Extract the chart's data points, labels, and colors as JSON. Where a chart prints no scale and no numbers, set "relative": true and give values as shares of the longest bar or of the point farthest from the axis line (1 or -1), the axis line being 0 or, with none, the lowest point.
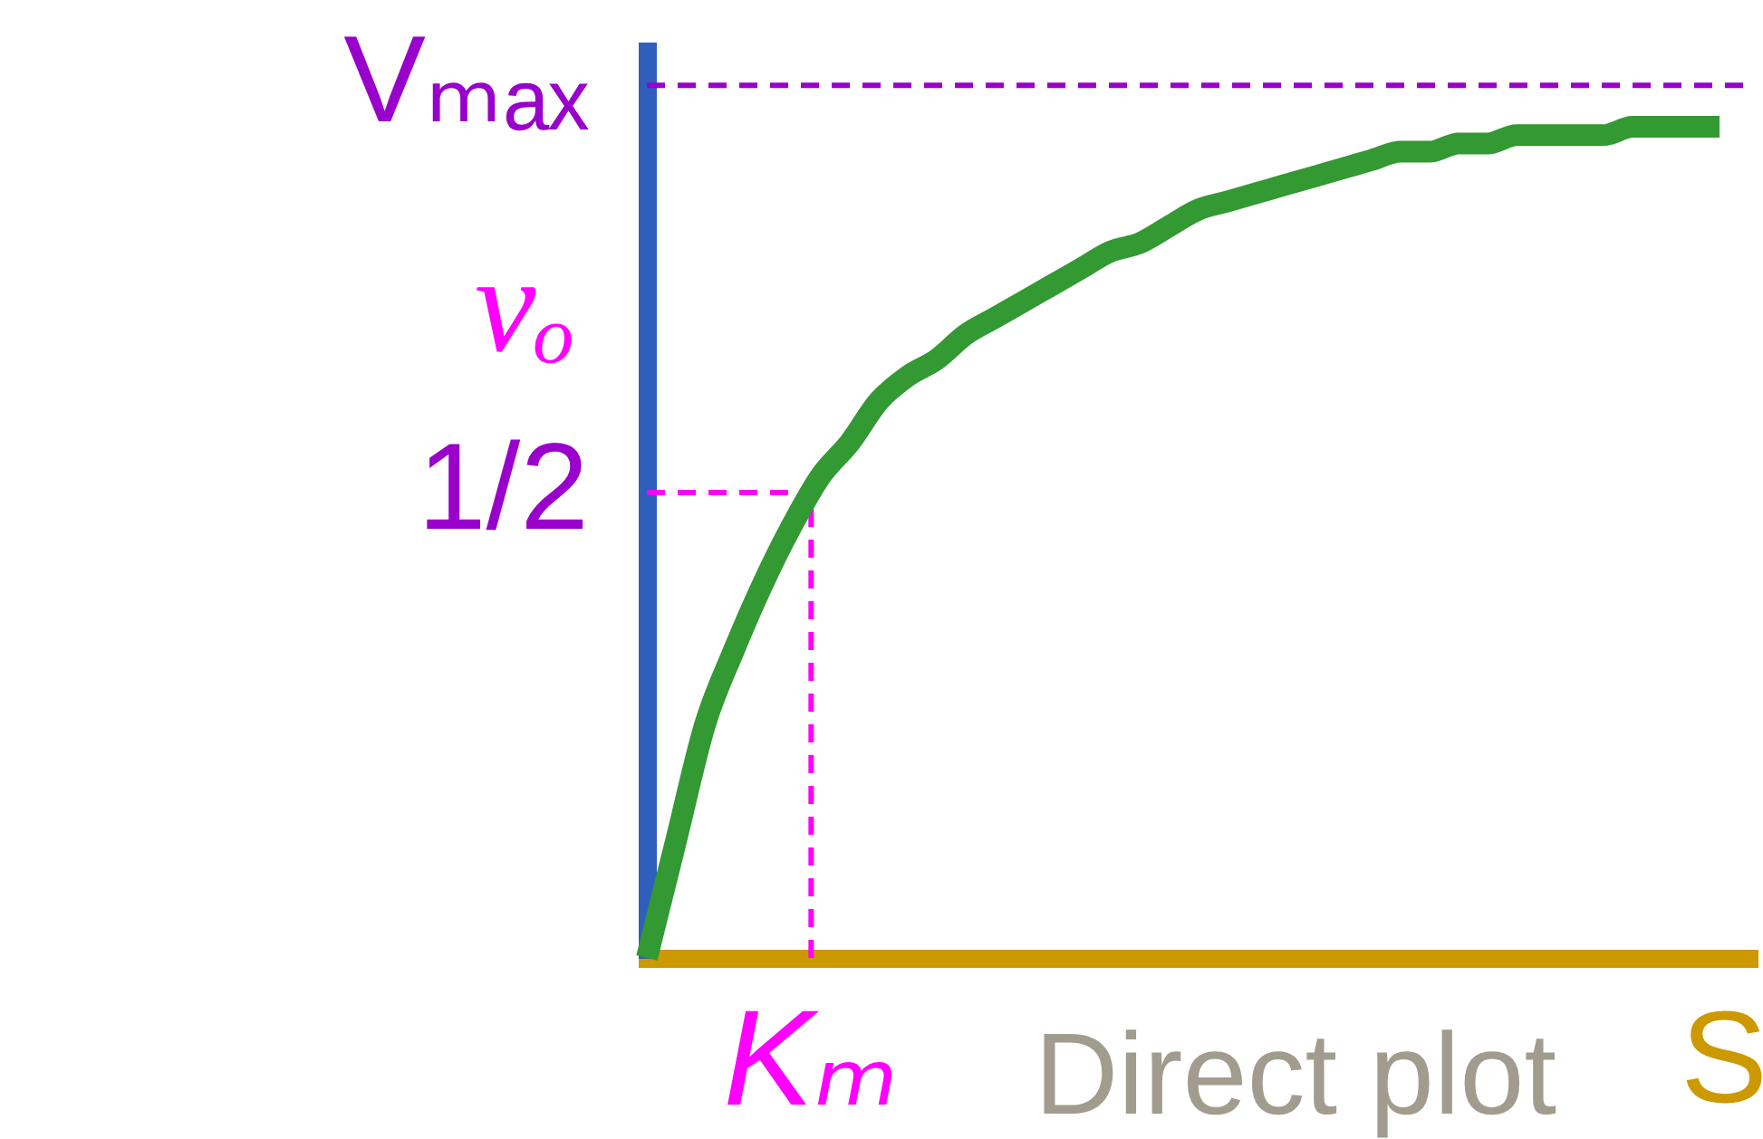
{
  "chart_data": {
    "type": "line",
    "relative": true,
    "xlabel": "S",
    "ylabel": "vₒ",
    "annotations": [
      "Direct plot"
    ],
    "categories": [
      null,
      null,
      null,
      null,
      null,
      null,
      null,
      null,
      null,
      null,
      null,
      null,
      null,
      null,
      null,
      null,
      null,
      null,
      null,
      null,
      null,
      null,
      null,
      null,
      null,
      null,
      null,
      null,
      null,
      null,
      null,
      null,
      null,
      null,
      null,
      null,
      null,
      null,
      null
    ],
    "ref_lines": [
      {
        "axis": "y",
        "value": 1.05,
        "label": "Vₘₐₓ",
        "color": "#9900cc",
        "line_style": "dashed"
      },
      {
        "axis": "y",
        "value": 0.56,
        "label": "1/2",
        "color": "#ff00ff",
        "line_style": "dashed"
      },
      {
        "axis": "x",
        "value": "Kₘ",
        "color": "#ff00ff",
        "line_style": "dashed"
      }
    ],
    "series": [
      {
        "color": "#339933",
        "values": [
          0,
          0.14,
          0.28,
          0.37,
          0.45,
          0.52,
          0.58,
          0.62,
          0.67,
          0.7,
          0.72,
          0.75,
          0.77,
          0.79,
          0.81,
          0.83,
          0.85,
          0.86,
          0.88,
          0.9,
          0.91,
          0.92,
          0.93,
          0.94,
          0.95,
          0.96,
          0.97,
          0.97,
          0.98,
          0.98,
          0.99,
          0.99,
          0.99,
          0.99,
          1,
          1,
          1,
          1,
          null
        ]
      }
    ]
  }
}
